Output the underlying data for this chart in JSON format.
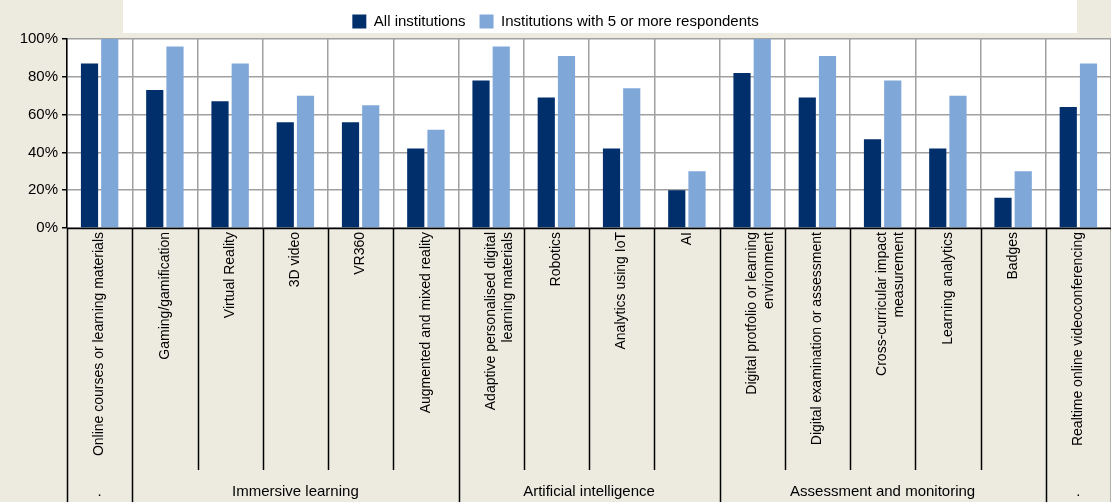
{
  "chart_data": {
    "type": "bar",
    "categories": [
      "Online courses or learning materials",
      "Gaming/gamification",
      "Virtual Reality",
      "3D video",
      "VR360",
      "Augmented and mixed reality",
      "Adaptive personalised digital learning materials",
      "Robotics",
      "Analytics using IoT",
      "AI",
      "Digital protfolio or learning environment",
      "Digital examination or assessment",
      "Cross-curricular impact measurement",
      "Learning analytics",
      "Badges",
      "Realtime online videoconferencing"
    ],
    "series": [
      {
        "name": "All institutions",
        "color": "#002f6c",
        "values": [
          87,
          73,
          67,
          56,
          56,
          42,
          78,
          69,
          42,
          20,
          82,
          69,
          47,
          42,
          16,
          64
        ]
      },
      {
        "name": "Institutions with 5 or more respondents",
        "color": "#7fa8d9",
        "values": [
          100,
          96,
          87,
          70,
          65,
          52,
          96,
          91,
          74,
          30,
          100,
          91,
          78,
          70,
          30,
          87
        ]
      }
    ],
    "ylim": [
      0,
      100
    ],
    "yticks": [
      {
        "value": 0,
        "label": "0%"
      },
      {
        "value": 20,
        "label": "20%"
      },
      {
        "value": 40,
        "label": "40%"
      },
      {
        "value": 60,
        "label": "60%"
      },
      {
        "value": 80,
        "label": "80%"
      },
      {
        "value": 100,
        "label": "100%"
      }
    ],
    "grid": true,
    "legend": "top",
    "annotations": [
      ".",
      "Immersive learning",
      "Artificial intelligence",
      "Assessment and monitoring",
      "."
    ]
  }
}
